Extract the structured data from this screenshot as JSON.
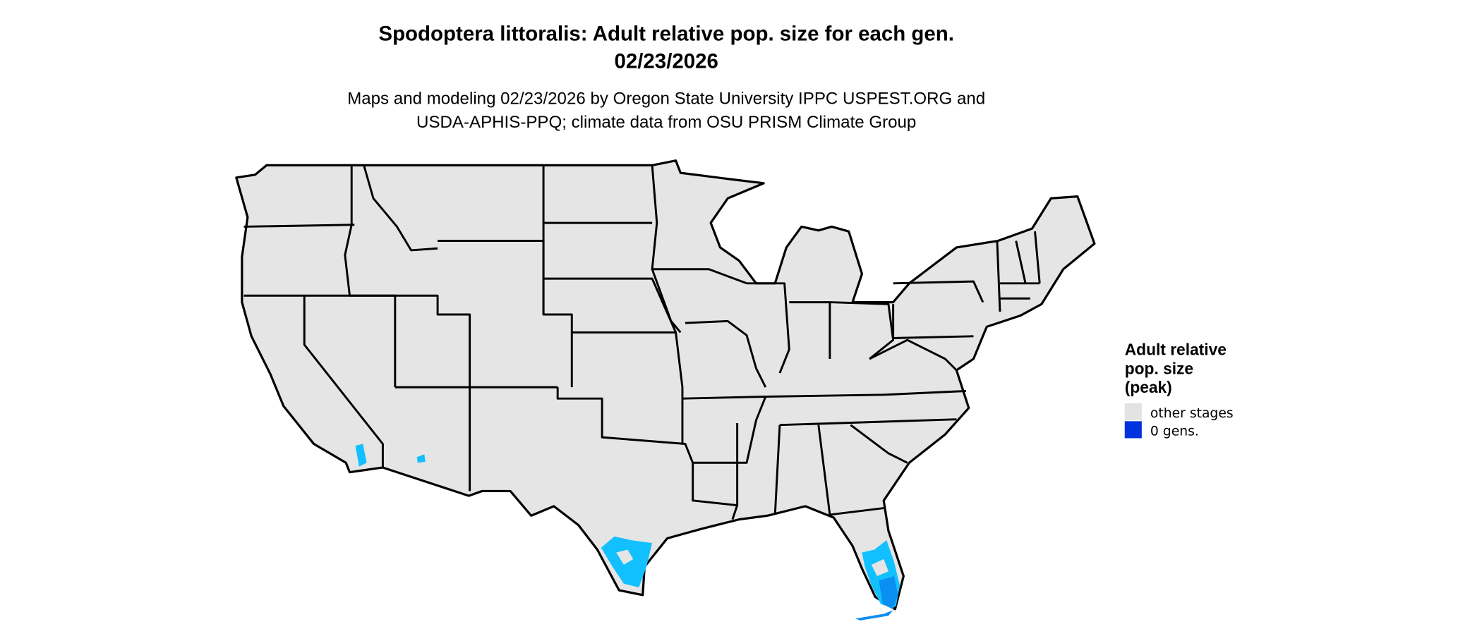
{
  "title": {
    "line1": "Spodoptera littoralis: Adult relative pop. size for each gen.",
    "line2": "02/23/2026"
  },
  "subtitle": {
    "line1": "Maps and modeling 02/23/2026 by Oregon State University IPPC USPEST.ORG and",
    "line2": "USDA-APHIS-PPQ; climate data from OSU PRISM Climate Group"
  },
  "legend": {
    "title_lines": [
      "Adult relative",
      "pop. size",
      "(peak)"
    ],
    "items": [
      {
        "label": "other stages",
        "color": "#e3e3e3"
      },
      {
        "label": "0 gens.",
        "color": "#0033dd"
      }
    ]
  },
  "map": {
    "region": "Contiguous United States",
    "land_color": "#e5e5e5",
    "border_color": "#000000",
    "highlight_colors": [
      "#12c0ff",
      "#0a8ef0"
    ]
  }
}
